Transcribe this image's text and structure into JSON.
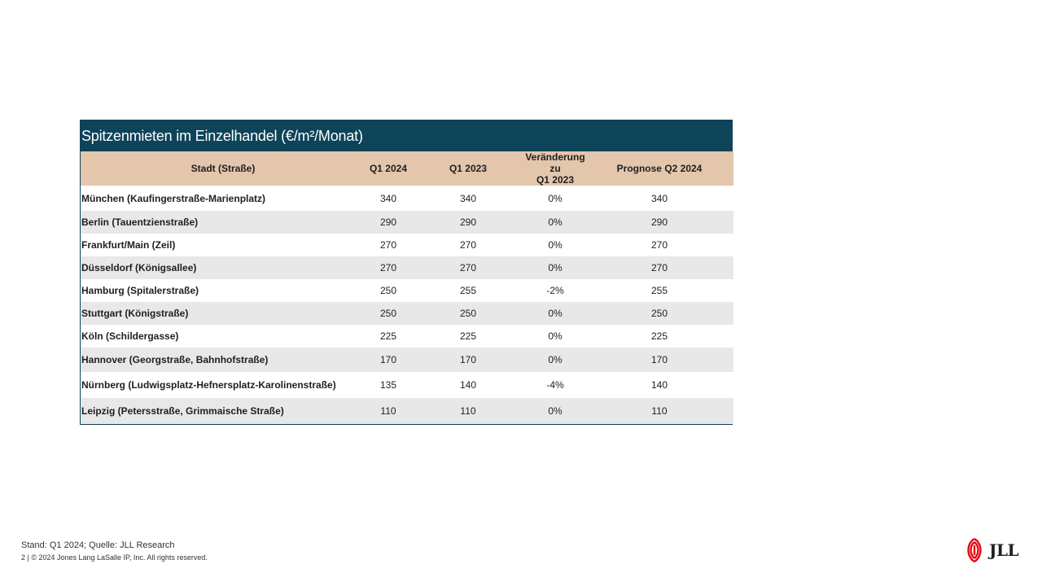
{
  "table": {
    "title": "Spitzenmieten im Einzelhandel (€/m²/Monat)",
    "headers": {
      "city": "Stadt (Straße)",
      "q1_2024": "Q1 2024",
      "q1_2023": "Q1 2023",
      "change_line1": "Veränderung zu",
      "change_line2": "Q1 2023",
      "forecast": "Prognose  Q2 2024"
    },
    "rows": [
      {
        "city": "München (Kaufingerstraße-Marienplatz)",
        "q1_2024": "340",
        "q1_2023": "340",
        "change": "0%",
        "forecast": "340"
      },
      {
        "city": "Berlin (Tauentzienstraße)",
        "q1_2024": "290",
        "q1_2023": "290",
        "change": "0%",
        "forecast": "290"
      },
      {
        "city": "Frankfurt/Main (Zeil)",
        "q1_2024": "270",
        "q1_2023": "270",
        "change": "0%",
        "forecast": "270"
      },
      {
        "city": "Düsseldorf  (Königsallee)",
        "q1_2024": "270",
        "q1_2023": "270",
        "change": "0%",
        "forecast": "270"
      },
      {
        "city": "Hamburg (Spitalerstraße)",
        "q1_2024": "250",
        "q1_2023": "255",
        "change": "-2%",
        "forecast": "255"
      },
      {
        "city": "Stuttgart (Königstraße)",
        "q1_2024": "250",
        "q1_2023": "250",
        "change": "0%",
        "forecast": "250"
      },
      {
        "city": "Köln (Schildergasse)",
        "q1_2024": "225",
        "q1_2023": "225",
        "change": "0%",
        "forecast": "225"
      },
      {
        "city": "Hannover (Georgstraße, Bahnhofstraße)",
        "q1_2024": "170",
        "q1_2023": "170",
        "change": "0%",
        "forecast": "170"
      },
      {
        "city": "Nürnberg (Ludwigsplatz-Hefnersplatz-Karolinenstraße)",
        "q1_2024": "135",
        "q1_2023": "140",
        "change": "-4%",
        "forecast": "140"
      },
      {
        "city": "Leipzig  (Petersstraße, Grimmaische Straße)",
        "q1_2024": "110",
        "q1_2023": "110",
        "change": "0%",
        "forecast": "110"
      }
    ]
  },
  "footer": {
    "source": "Stand: Q1 2024; Quelle: JLL Research",
    "copyright": "2  |  © 2024 Jones Lang LaSalle IP,  Inc.  All rights reserved."
  },
  "logo": {
    "text": "JLL",
    "icon": "jll-flame-icon",
    "color": "#e30613"
  }
}
